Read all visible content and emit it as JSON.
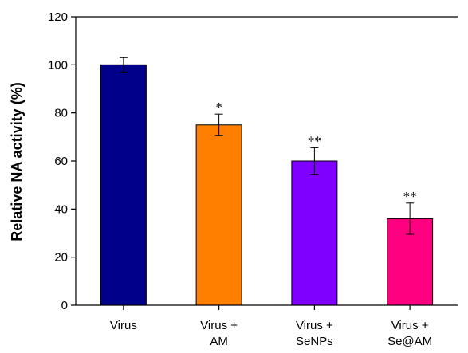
{
  "chart_data": {
    "type": "bar",
    "title": "",
    "xlabel": "",
    "ylabel": "Relative NA activity (%)",
    "ylim": [
      0,
      120
    ],
    "yticks": [
      0,
      20,
      40,
      60,
      80,
      100,
      120
    ],
    "grid": false,
    "categories": [
      [
        "Virus"
      ],
      [
        "Virus +",
        "AM"
      ],
      [
        "Virus +",
        "SeNPs"
      ],
      [
        "Virus +",
        "Se@AM"
      ]
    ],
    "values": [
      100,
      75,
      60,
      36
    ],
    "errors": [
      3,
      4.5,
      5.5,
      6.5
    ],
    "significance": [
      "",
      "*",
      "**",
      "**"
    ],
    "colors": [
      "#00008b",
      "#ff7f00",
      "#8000ff",
      "#ff0080"
    ]
  }
}
